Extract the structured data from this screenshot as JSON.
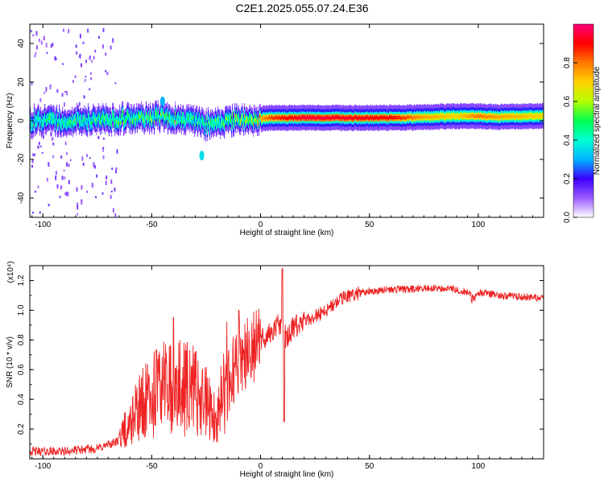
{
  "title": "C2E1.2025.055.07.24.E36",
  "chart_data": [
    {
      "type": "heatmap",
      "xlabel": "Height of straight line (km)",
      "ylabel": "Frequency (Hz)",
      "xlim": [
        -106,
        130
      ],
      "ylim": [
        -50,
        50
      ],
      "xticks": [
        -100,
        -50,
        0,
        50,
        100
      ],
      "yticks": [
        -40,
        -20,
        0,
        20,
        40
      ],
      "colorbar": {
        "label": "Normalized spectral amplitude",
        "range": [
          0,
          1
        ],
        "ticks": [
          "0.0",
          "0.2",
          "0.4",
          "0.6",
          "0.8"
        ],
        "colors": [
          "#ffffff",
          "#9b5cff",
          "#3a00ff",
          "#00b4ff",
          "#00ffd2",
          "#00ff50",
          "#b4ff00",
          "#ffd200",
          "#ff7800",
          "#ff0000",
          "#ff0078"
        ]
      },
      "band": {
        "center_hz": [
          [
            -106,
            0
          ],
          [
            -70,
            0.5
          ],
          [
            -60,
            1.5
          ],
          [
            -45,
            2
          ],
          [
            -30,
            0
          ],
          [
            -25,
            -2
          ],
          [
            -15,
            0
          ],
          [
            -5,
            0.5
          ],
          [
            5,
            1.5
          ],
          [
            30,
            1.5
          ],
          [
            60,
            1.5
          ],
          [
            80,
            2
          ],
          [
            95,
            2.5
          ],
          [
            110,
            2
          ],
          [
            130,
            2.5
          ]
        ],
        "intensity": [
          [
            -106,
            0.45
          ],
          [
            -70,
            0.5
          ],
          [
            -50,
            0.55
          ],
          [
            -30,
            0.45
          ],
          [
            -15,
            0.55
          ],
          [
            -5,
            0.65
          ],
          [
            5,
            0.85
          ],
          [
            20,
            0.95
          ],
          [
            60,
            0.9
          ],
          [
            75,
            0.75
          ],
          [
            90,
            0.7
          ],
          [
            100,
            0.8
          ],
          [
            110,
            0.75
          ],
          [
            130,
            0.7
          ]
        ]
      },
      "features": [
        {
          "x": -27,
          "y": -18,
          "value": 0.35
        },
        {
          "x": -45,
          "y": 10,
          "value": 0.3
        }
      ]
    },
    {
      "type": "line",
      "xlabel": "Height of straight line (km)",
      "ylabel": "SNR (10 * v/v)",
      "multiplier": "(x10⁴)",
      "xlim": [
        -106,
        130
      ],
      "ylim": [
        0,
        1.3
      ],
      "xticks": [
        -100,
        -50,
        0,
        50,
        100
      ],
      "yticks": [
        "0.2",
        "0.4",
        "0.6",
        "0.8",
        "1.0",
        "1.2"
      ],
      "series_color": "#ee2222",
      "envelope_x": [
        -106,
        -90,
        -75,
        -65,
        -60,
        -55,
        -50,
        -45,
        -40,
        -35,
        -30,
        -25,
        -20,
        -17,
        -15,
        -12,
        -10,
        -5,
        0,
        5,
        8,
        10,
        12,
        15,
        20,
        25,
        30,
        35,
        40,
        50,
        60,
        70,
        80,
        90,
        95,
        98,
        100,
        110,
        120,
        130
      ],
      "envelope_y": [
        0.05,
        0.05,
        0.07,
        0.12,
        0.22,
        0.3,
        0.38,
        0.45,
        0.4,
        0.42,
        0.4,
        0.32,
        0.2,
        0.4,
        0.55,
        0.6,
        0.7,
        0.72,
        0.8,
        0.85,
        0.9,
        0.88,
        0.8,
        0.88,
        0.92,
        0.96,
        1.0,
        1.05,
        1.1,
        1.13,
        1.14,
        1.14,
        1.15,
        1.14,
        1.12,
        1.08,
        1.12,
        1.1,
        1.09,
        1.08
      ],
      "spikes": [
        {
          "x": 10,
          "y": 1.28
        },
        {
          "x": 10.8,
          "y": 0.25
        },
        {
          "x": -10,
          "y": 1.0
        },
        {
          "x": -40,
          "y": 0.95
        },
        {
          "x": 97,
          "y": 1.05
        }
      ]
    }
  ]
}
